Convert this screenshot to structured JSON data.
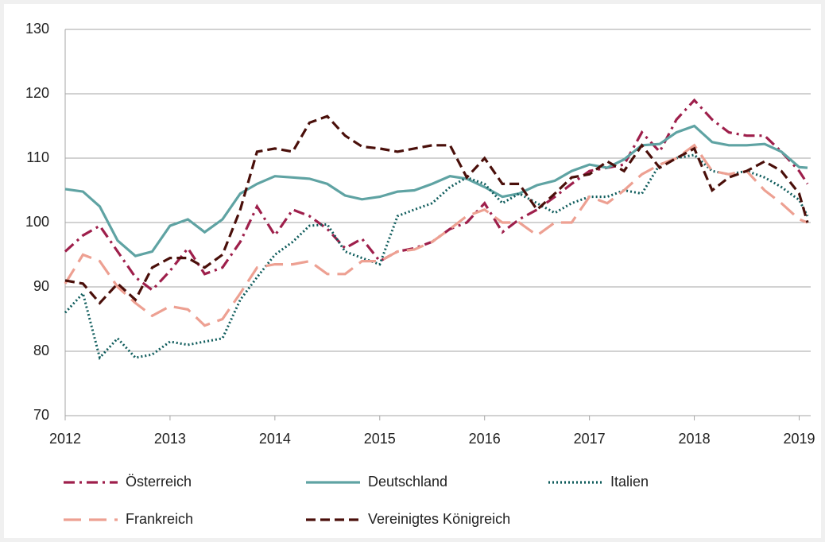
{
  "chart_data": {
    "type": "line",
    "x": [
      2012,
      2012.17,
      2012.33,
      2012.5,
      2012.67,
      2012.83,
      2013,
      2013.17,
      2013.33,
      2013.5,
      2013.67,
      2013.83,
      2014,
      2014.17,
      2014.33,
      2014.5,
      2014.67,
      2014.83,
      2015,
      2015.17,
      2015.33,
      2015.5,
      2015.67,
      2015.83,
      2016,
      2016.17,
      2016.33,
      2016.5,
      2016.67,
      2016.83,
      2017,
      2017.17,
      2017.33,
      2017.5,
      2017.67,
      2017.83,
      2018,
      2018.17,
      2018.33,
      2018.5,
      2018.67,
      2018.83,
      2019,
      2019.08
    ],
    "series": [
      {
        "name": "Österreich",
        "color": "#9e1f4b",
        "dash": "dash-dot",
        "values": [
          95.5,
          98,
          99.5,
          95.5,
          91.5,
          89.5,
          92.5,
          96,
          92,
          93,
          97,
          102.5,
          98,
          102,
          101,
          99,
          96,
          97.5,
          94,
          95.5,
          96,
          97,
          99,
          100,
          103,
          98.5,
          100.5,
          102,
          104,
          106,
          108,
          108.5,
          109,
          114,
          111,
          116,
          119,
          116,
          114,
          113.5,
          113.5,
          111,
          108,
          106
        ]
      },
      {
        "name": "Deutschland",
        "color": "#5fa3a3",
        "dash": "solid",
        "values": [
          105.2,
          104.8,
          102.5,
          97.2,
          94.8,
          95.5,
          99.5,
          100.5,
          98.5,
          100.5,
          104.5,
          106,
          107.2,
          107,
          106.8,
          106,
          104.2,
          103.6,
          104,
          104.8,
          105,
          106,
          107.2,
          106.8,
          105.5,
          104,
          104.5,
          105.8,
          106.5,
          108,
          109,
          108.5,
          109.8,
          112,
          112.2,
          114,
          115,
          112.5,
          112,
          112,
          112.2,
          111,
          108.6,
          108.5
        ]
      },
      {
        "name": "Italien",
        "color": "#0f5c5c",
        "dash": "dotted",
        "values": [
          86,
          89,
          79,
          82,
          79,
          79.5,
          81.5,
          81,
          81.5,
          82,
          88,
          91.5,
          95,
          97,
          99.5,
          99.7,
          95.5,
          94.5,
          93.5,
          101,
          102,
          103,
          105.5,
          107,
          106,
          103,
          104.5,
          103,
          101.5,
          103,
          104,
          104,
          105,
          104.5,
          109,
          110,
          110.5,
          108,
          107.5,
          108,
          107,
          105.5,
          103.5,
          101
        ]
      },
      {
        "name": "Frankreich",
        "color": "#eda092",
        "dash": "long-dash",
        "values": [
          90.5,
          95,
          94,
          90,
          87.5,
          85.5,
          87,
          86.5,
          84,
          85,
          89,
          93,
          93.5,
          93.5,
          94,
          92,
          92,
          94,
          94,
          95.5,
          95.8,
          97,
          99,
          101,
          102,
          100,
          100,
          98,
          100,
          100,
          104,
          103,
          105,
          107.5,
          109,
          110,
          112,
          108,
          107.5,
          108,
          105,
          103,
          100.5,
          100
        ]
      },
      {
        "name": "Vereinigtes Königreich",
        "color": "#4a0f0a",
        "dash": "dash",
        "values": [
          91,
          90.5,
          87.5,
          90.5,
          88,
          93,
          94.5,
          94.5,
          93,
          95,
          102,
          111,
          111.5,
          111,
          115.5,
          116.5,
          113.5,
          111.8,
          111.5,
          111,
          111.5,
          112,
          112,
          107,
          110,
          106,
          106,
          102,
          104.5,
          107,
          107.5,
          109.5,
          108,
          112,
          108.5,
          110,
          111.5,
          105,
          107,
          108,
          109.5,
          108,
          104.5,
          100
        ]
      }
    ],
    "xlim": [
      2012,
      2019.11
    ],
    "xticks": [
      2012,
      2013,
      2014,
      2015,
      2016,
      2017,
      2018,
      2019
    ],
    "ylim": [
      70,
      130
    ],
    "yticks": [
      70,
      80,
      90,
      100,
      110,
      120,
      130
    ],
    "grid": true,
    "legend": "bottom"
  }
}
